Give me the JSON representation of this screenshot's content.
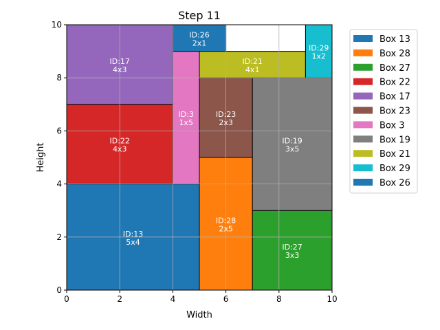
{
  "chart_data": {
    "type": "rectangle-packing",
    "title": "Step 11",
    "xlabel": "Width",
    "ylabel": "Height",
    "xlim": [
      0,
      10
    ],
    "ylim": [
      0,
      10
    ],
    "xticks": [
      0,
      2,
      4,
      6,
      8,
      10
    ],
    "yticks": [
      0,
      2,
      4,
      6,
      8,
      10
    ],
    "grid": true,
    "legend_position": "outside-right",
    "boxes": [
      {
        "id": 13,
        "x": 0,
        "y": 0,
        "w": 5,
        "h": 4,
        "label_id": "ID:13",
        "label_size": "5x4",
        "color": "#1f77b4"
      },
      {
        "id": 28,
        "x": 5,
        "y": 0,
        "w": 2,
        "h": 5,
        "label_id": "ID:28",
        "label_size": "2x5",
        "color": "#ff7f0e"
      },
      {
        "id": 27,
        "x": 7,
        "y": 0,
        "w": 3,
        "h": 3,
        "label_id": "ID:27",
        "label_size": "3x3",
        "color": "#2ca02c"
      },
      {
        "id": 22,
        "x": 0,
        "y": 4,
        "w": 4,
        "h": 3,
        "label_id": "ID:22",
        "label_size": "4x3",
        "color": "#d62728"
      },
      {
        "id": 17,
        "x": 0,
        "y": 7,
        "w": 4,
        "h": 3,
        "label_id": "ID:17",
        "label_size": "4x3",
        "color": "#9467bd"
      },
      {
        "id": 23,
        "x": 5,
        "y": 5,
        "w": 2,
        "h": 3,
        "label_id": "ID:23",
        "label_size": "2x3",
        "color": "#8c564b"
      },
      {
        "id": 3,
        "x": 4,
        "y": 4,
        "w": 1,
        "h": 5,
        "label_id": "ID:3",
        "label_size": "1x5",
        "color": "#e377c2"
      },
      {
        "id": 19,
        "x": 7,
        "y": 3,
        "w": 3,
        "h": 5,
        "label_id": "ID:19",
        "label_size": "3x5",
        "color": "#7f7f7f"
      },
      {
        "id": 21,
        "x": 5,
        "y": 8,
        "w": 4,
        "h": 1,
        "label_id": "ID:21",
        "label_size": "4x1",
        "color": "#bcbd22"
      },
      {
        "id": 29,
        "x": 9,
        "y": 8,
        "w": 1,
        "h": 2,
        "label_id": "ID:29",
        "label_size": "1x2",
        "color": "#17becf"
      },
      {
        "id": 26,
        "x": 4,
        "y": 9,
        "w": 2,
        "h": 1,
        "label_id": "ID:26",
        "label_size": "2x1",
        "color": "#1f77b4"
      }
    ],
    "empty_cells": [
      {
        "x": 6,
        "y": 9,
        "w": 3,
        "h": 1
      }
    ],
    "legend": [
      {
        "label": "Box 13",
        "color": "#1f77b4"
      },
      {
        "label": "Box 28",
        "color": "#ff7f0e"
      },
      {
        "label": "Box 27",
        "color": "#2ca02c"
      },
      {
        "label": "Box 22",
        "color": "#d62728"
      },
      {
        "label": "Box 17",
        "color": "#9467bd"
      },
      {
        "label": "Box 23",
        "color": "#8c564b"
      },
      {
        "label": "Box 3",
        "color": "#e377c2"
      },
      {
        "label": "Box 19",
        "color": "#7f7f7f"
      },
      {
        "label": "Box 21",
        "color": "#bcbd22"
      },
      {
        "label": "Box 29",
        "color": "#17becf"
      },
      {
        "label": "Box 26",
        "color": "#1f77b4"
      }
    ]
  }
}
